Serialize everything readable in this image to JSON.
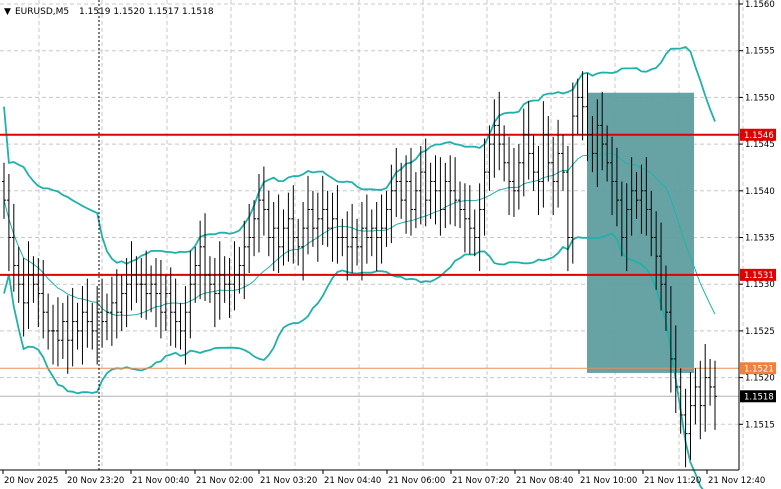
{
  "header": {
    "arrow": "▼",
    "symbol_timeframe": "EURUSD,M5",
    "ohlc": "1.1519 1.1520 1.1517 1.1518"
  },
  "colors": {
    "background": "#ffffff",
    "grid": "#c8c8c8",
    "candle": "#000000",
    "bollinger": "#20b2aa",
    "level_line": "#e00000",
    "entry_line": "#e8905a",
    "zone_fill": "#5f9ea0",
    "price_tag_red": "#e00000",
    "price_tag_orange": "#f08040",
    "price_tag_current": "#000000"
  },
  "chart_data": {
    "type": "candlestick",
    "symbol": "EURUSD",
    "timeframe": "M5",
    "ylim": [
      1.151,
      1.156
    ],
    "y_ticks": [
      "1.1560",
      "1.1555",
      "1.1550",
      "1.1545",
      "1.1540",
      "1.1535",
      "1.1530",
      "1.1525",
      "1.1520",
      "1.1515"
    ],
    "x_ticks": [
      "20 Nov 2025",
      "20 Nov 23:20",
      "21 Nov 00:40",
      "21 Nov 02:00",
      "21 Nov 03:20",
      "21 Nov 04:40",
      "21 Nov 06:00",
      "21 Nov 07:20",
      "21 Nov 08:40",
      "21 Nov 10:00",
      "21 Nov 11:20",
      "21 Nov 12:40"
    ],
    "price_tags": [
      {
        "value": "1.1546",
        "style": "red"
      },
      {
        "value": "1.1531",
        "style": "red"
      },
      {
        "value": "1.1521",
        "style": "orange"
      },
      {
        "value": "1.1518",
        "style": "current"
      }
    ],
    "horizontal_levels": [
      {
        "price": 1.1546,
        "color": "red"
      },
      {
        "price": 1.1531,
        "color": "red"
      },
      {
        "price": 1.1521,
        "color": "orange"
      },
      {
        "price": 1.1518,
        "color": "grey"
      }
    ],
    "sell_zone": {
      "price_top": 1.15505,
      "price_bottom": 1.15205
    },
    "series": {
      "close": [
        1.1539,
        1.1535,
        1.1532,
        1.153,
        1.1528,
        1.1531,
        1.153,
        1.1529,
        1.1527,
        1.1525,
        1.1525,
        1.1524,
        1.1526,
        1.1524,
        1.1526,
        1.1525,
        1.1527,
        1.1526,
        1.1525,
        1.1527,
        1.1526,
        1.1527,
        1.1528,
        1.1527,
        1.1529,
        1.153,
        1.1531,
        1.153,
        1.153,
        1.1529,
        1.153,
        1.1529,
        1.1527,
        1.1529,
        1.1527,
        1.1526,
        1.1525,
        1.1527,
        1.153,
        1.1532,
        1.1534,
        1.1531,
        1.153,
        1.1529,
        1.1531,
        1.153,
        1.153,
        1.1531,
        1.1532,
        1.1534,
        1.1535,
        1.1537,
        1.1539,
        1.1538,
        1.1535,
        1.1536,
        1.1534,
        1.1536,
        1.1537,
        1.1535,
        1.1534,
        1.1536,
        1.1538,
        1.1536,
        1.1537,
        1.1538,
        1.1536,
        1.1537,
        1.1535,
        1.1535,
        1.1534,
        1.1535,
        1.1534,
        1.1536,
        1.1535,
        1.1536,
        1.1535,
        1.1536,
        1.1538,
        1.154,
        1.1541,
        1.1539,
        1.1541,
        1.1538,
        1.154,
        1.1542,
        1.1539,
        1.1541,
        1.154,
        1.1538,
        1.1541,
        1.154,
        1.1539,
        1.1538,
        1.1537,
        1.1536,
        1.1535,
        1.1538,
        1.1542,
        1.1545,
        1.1547,
        1.1545,
        1.1543,
        1.1541,
        1.154,
        1.1543,
        1.1546,
        1.1544,
        1.1542,
        1.1541,
        1.1546,
        1.1543,
        1.1541,
        1.1544,
        1.1542,
        1.1535,
        1.1548,
        1.155,
        1.1549,
        1.1546,
        1.1544,
        1.1547,
        1.1545,
        1.1543,
        1.1541,
        1.1539,
        1.1535,
        1.1538,
        1.154,
        1.1539,
        1.154,
        1.1538,
        1.1535,
        1.1533,
        1.153,
        1.1527,
        1.1522,
        1.1519,
        1.1516,
        1.1514,
        1.1517,
        1.1519,
        1.1517,
        1.152,
        1.1519,
        1.1518
      ]
    }
  }
}
